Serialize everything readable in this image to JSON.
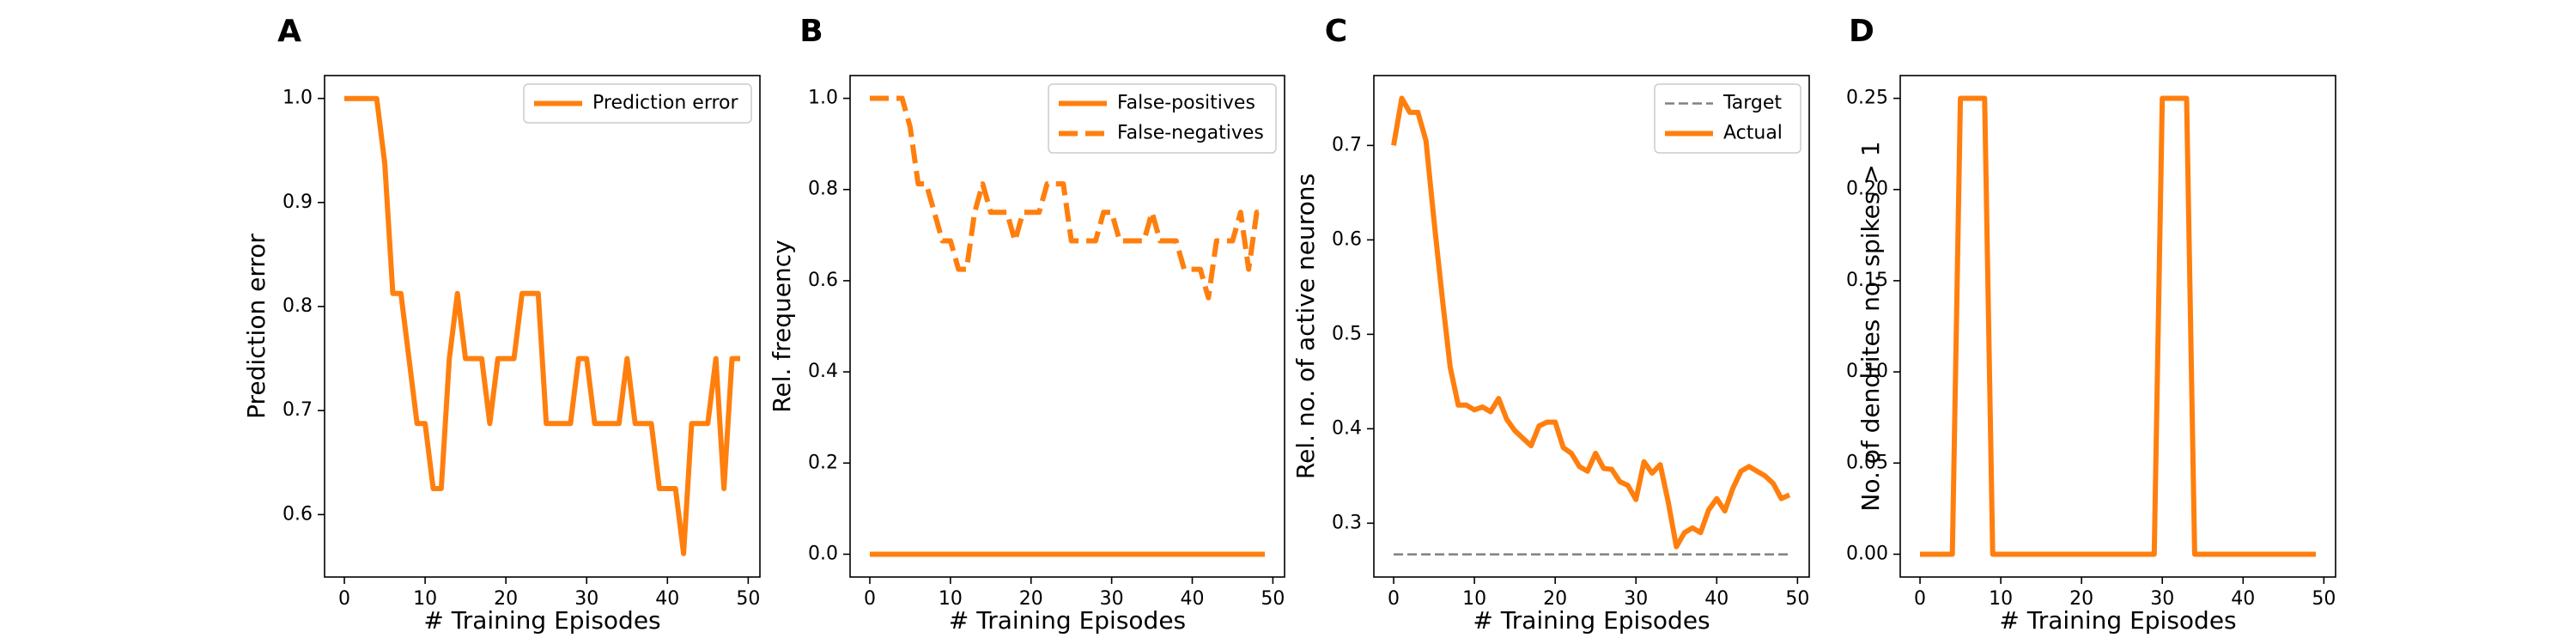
{
  "colors": {
    "series": "#ff7f0e",
    "target": "#808080",
    "axis": "#000000"
  },
  "chart_data": [
    {
      "type": "line",
      "panel_letter": "A",
      "xlabel": "# Training Episodes",
      "ylabel": "Prediction error",
      "xlim": [
        -2.45,
        51.45
      ],
      "ylim": [
        0.54,
        1.022
      ],
      "xticks": [
        0,
        10,
        20,
        30,
        40,
        50
      ],
      "yticks": [
        0.6,
        0.7,
        0.8,
        0.9,
        1.0
      ],
      "ytick_labels": [
        "0.6",
        "0.7",
        "0.8",
        "0.9",
        "1.0"
      ],
      "legend_position": "top-right",
      "series": [
        {
          "name": "Prediction error",
          "style": "solid",
          "color": "#ff7f0e",
          "x": [
            0,
            1,
            2,
            3,
            4,
            5,
            6,
            7,
            8,
            9,
            10,
            11,
            12,
            13,
            14,
            15,
            16,
            17,
            18,
            19,
            20,
            21,
            22,
            23,
            24,
            25,
            26,
            27,
            28,
            29,
            30,
            31,
            32,
            33,
            34,
            35,
            36,
            37,
            38,
            39,
            40,
            41,
            42,
            43,
            44,
            45,
            46,
            47,
            48,
            49
          ],
          "y": [
            1.0,
            1.0,
            1.0,
            1.0,
            1.0,
            0.9375,
            0.8125,
            0.8125,
            0.75,
            0.6875,
            0.6875,
            0.625,
            0.625,
            0.75,
            0.8125,
            0.75,
            0.75,
            0.75,
            0.6875,
            0.75,
            0.75,
            0.75,
            0.8125,
            0.8125,
            0.8125,
            0.6875,
            0.6875,
            0.6875,
            0.6875,
            0.75,
            0.75,
            0.6875,
            0.6875,
            0.6875,
            0.6875,
            0.75,
            0.6875,
            0.6875,
            0.6875,
            0.625,
            0.625,
            0.625,
            0.5625,
            0.6875,
            0.6875,
            0.6875,
            0.75,
            0.625,
            0.75,
            0.75
          ]
        }
      ]
    },
    {
      "type": "line",
      "panel_letter": "B",
      "xlabel": "# Training Episodes",
      "ylabel": "Rel. frequency",
      "xlim": [
        -2.45,
        51.45
      ],
      "ylim": [
        -0.05,
        1.05
      ],
      "xticks": [
        0,
        10,
        20,
        30,
        40,
        50
      ],
      "yticks": [
        0.0,
        0.2,
        0.4,
        0.6,
        0.8,
        1.0
      ],
      "ytick_labels": [
        "0.0",
        "0.2",
        "0.4",
        "0.6",
        "0.8",
        "1.0"
      ],
      "legend_position": "top-right",
      "series": [
        {
          "name": "False-positives",
          "style": "solid",
          "color": "#ff7f0e",
          "x": [
            0,
            1,
            2,
            3,
            4,
            5,
            6,
            7,
            8,
            9,
            10,
            11,
            12,
            13,
            14,
            15,
            16,
            17,
            18,
            19,
            20,
            21,
            22,
            23,
            24,
            25,
            26,
            27,
            28,
            29,
            30,
            31,
            32,
            33,
            34,
            35,
            36,
            37,
            38,
            39,
            40,
            41,
            42,
            43,
            44,
            45,
            46,
            47,
            48,
            49
          ],
          "y": [
            0,
            0,
            0,
            0,
            0,
            0,
            0,
            0,
            0,
            0,
            0,
            0,
            0,
            0,
            0,
            0,
            0,
            0,
            0,
            0,
            0,
            0,
            0,
            0,
            0,
            0,
            0,
            0,
            0,
            0,
            0,
            0,
            0,
            0,
            0,
            0,
            0,
            0,
            0,
            0,
            0,
            0,
            0,
            0,
            0,
            0,
            0,
            0,
            0,
            0
          ]
        },
        {
          "name": "False-negatives",
          "style": "dashed",
          "color": "#ff7f0e",
          "x": [
            0,
            1,
            2,
            3,
            4,
            5,
            6,
            7,
            8,
            9,
            10,
            11,
            12,
            13,
            14,
            15,
            16,
            17,
            18,
            19,
            20,
            21,
            22,
            23,
            24,
            25,
            26,
            27,
            28,
            29,
            30,
            31,
            32,
            33,
            34,
            35,
            36,
            37,
            38,
            39,
            40,
            41,
            42,
            43,
            44,
            45,
            46,
            47,
            48,
            49
          ],
          "y": [
            1.0,
            1.0,
            1.0,
            1.0,
            1.0,
            0.9375,
            0.8125,
            0.8125,
            0.75,
            0.6875,
            0.6875,
            0.625,
            0.625,
            0.75,
            0.8125,
            0.75,
            0.75,
            0.75,
            0.6875,
            0.75,
            0.75,
            0.75,
            0.8125,
            0.8125,
            0.8125,
            0.6875,
            0.6875,
            0.6875,
            0.6875,
            0.75,
            0.75,
            0.6875,
            0.6875,
            0.6875,
            0.6875,
            0.75,
            0.6875,
            0.6875,
            0.6875,
            0.625,
            0.625,
            0.625,
            0.5625,
            0.6875,
            0.6875,
            0.6875,
            0.75,
            0.625,
            0.75,
            0.75
          ]
        }
      ]
    },
    {
      "type": "line",
      "panel_letter": "C",
      "xlabel": "# Training Episodes",
      "ylabel": "Rel. no. of active neurons",
      "xlim": [
        -2.45,
        51.45
      ],
      "ylim": [
        0.243,
        0.774
      ],
      "xticks": [
        0,
        10,
        20,
        30,
        40,
        50
      ],
      "yticks": [
        0.3,
        0.4,
        0.5,
        0.6,
        0.7
      ],
      "ytick_labels": [
        "0.3",
        "0.4",
        "0.5",
        "0.6",
        "0.7"
      ],
      "legend_position": "top-right",
      "series": [
        {
          "name": "Target",
          "style": "dashed-thin",
          "color": "#808080",
          "x": [
            0,
            49
          ],
          "y": [
            0.267,
            0.267
          ]
        },
        {
          "name": "Actual",
          "style": "solid",
          "color": "#ff7f0e",
          "x": [
            0,
            1,
            2,
            3,
            4,
            5,
            6,
            7,
            8,
            9,
            10,
            11,
            12,
            13,
            14,
            15,
            16,
            17,
            18,
            19,
            20,
            21,
            22,
            23,
            24,
            25,
            26,
            27,
            28,
            29,
            30,
            31,
            32,
            33,
            34,
            35,
            36,
            37,
            38,
            39,
            40,
            41,
            42,
            43,
            44,
            45,
            46,
            47,
            48,
            49
          ],
          "y": [
            0.7,
            0.75,
            0.735,
            0.735,
            0.705,
            0.62,
            0.54,
            0.465,
            0.425,
            0.425,
            0.42,
            0.423,
            0.418,
            0.432,
            0.41,
            0.398,
            0.39,
            0.382,
            0.403,
            0.407,
            0.407,
            0.38,
            0.374,
            0.36,
            0.355,
            0.374,
            0.358,
            0.357,
            0.344,
            0.34,
            0.325,
            0.365,
            0.353,
            0.362,
            0.322,
            0.275,
            0.29,
            0.295,
            0.29,
            0.314,
            0.326,
            0.313,
            0.337,
            0.355,
            0.36,
            0.355,
            0.35,
            0.342,
            0.326,
            0.33
          ]
        }
      ]
    },
    {
      "type": "line",
      "panel_letter": "D",
      "xlabel": "# Training Episodes",
      "ylabel": "No. of dendrites no. spikes > 1",
      "xlim": [
        -2.45,
        51.45
      ],
      "ylim": [
        -0.0125,
        0.2625
      ],
      "xticks": [
        0,
        10,
        20,
        30,
        40,
        50
      ],
      "yticks": [
        0.0,
        0.05,
        0.1,
        0.15,
        0.2,
        0.25
      ],
      "ytick_labels": [
        "0.00",
        "0.05",
        "0.10",
        "0.15",
        "0.20",
        "0.25"
      ],
      "legend_position": "none",
      "series": [
        {
          "name": "",
          "style": "solid",
          "color": "#ff7f0e",
          "x": [
            0,
            1,
            2,
            3,
            4,
            5,
            6,
            7,
            8,
            9,
            10,
            11,
            12,
            13,
            14,
            15,
            16,
            17,
            18,
            19,
            20,
            21,
            22,
            23,
            24,
            25,
            26,
            27,
            28,
            29,
            30,
            31,
            32,
            33,
            34,
            35,
            36,
            37,
            38,
            39,
            40,
            41,
            42,
            43,
            44,
            45,
            46,
            47,
            48,
            49
          ],
          "y": [
            0,
            0,
            0,
            0,
            0,
            0.25,
            0.25,
            0.25,
            0.25,
            0,
            0,
            0,
            0,
            0,
            0,
            0,
            0,
            0,
            0,
            0,
            0,
            0,
            0,
            0,
            0,
            0,
            0,
            0,
            0,
            0,
            0.25,
            0.25,
            0.25,
            0.25,
            0,
            0,
            0,
            0,
            0,
            0,
            0,
            0,
            0,
            0,
            0,
            0,
            0,
            0,
            0,
            0
          ]
        }
      ]
    }
  ]
}
